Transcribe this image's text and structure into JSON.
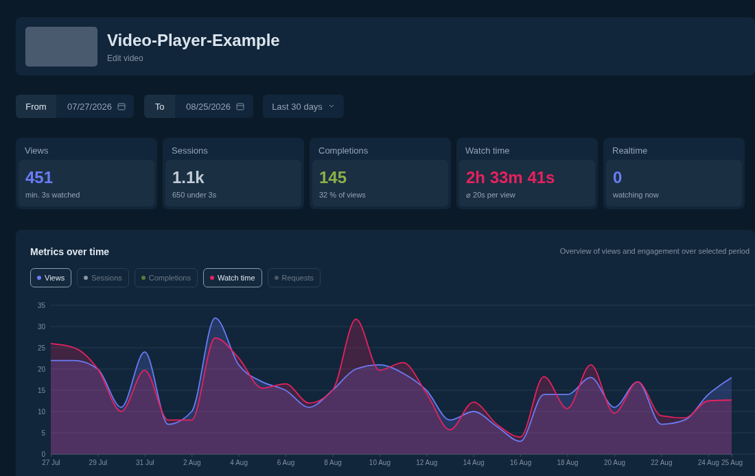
{
  "chart_data": [
    {
      "type": "other",
      "title": "Video-Player-Example",
      "subtitle": "Edit video",
      "annotations": [
        "From",
        "07/27/2026",
        "To",
        "08/25/2026",
        "Last 30 days",
        "Views",
        "451",
        "min. 3s watched",
        "Sessions",
        "1.1k",
        "650 under 3s",
        "Completions",
        "145",
        "32 % of views",
        "Watch time",
        "2h 33m 41s",
        "⌀ 20s per view",
        "Realtime",
        "0",
        "watching now"
      ]
    },
    {
      "type": "area",
      "title": "Metrics over time",
      "subtitle": "Overview of views and engagement over selected period",
      "x": [
        "2026-07-27",
        "2026-07-28",
        "2026-07-29",
        "2026-07-30",
        "2026-07-31",
        "2026-08-01",
        "2026-08-02",
        "2026-08-03",
        "2026-08-04",
        "2026-08-05",
        "2026-08-06",
        "2026-08-07",
        "2026-08-08",
        "2026-08-09",
        "2026-08-10",
        "2026-08-11",
        "2026-08-12",
        "2026-08-13",
        "2026-08-14",
        "2026-08-15",
        "2026-08-16",
        "2026-08-17",
        "2026-08-18",
        "2026-08-19",
        "2026-08-20",
        "2026-08-21",
        "2026-08-22",
        "2026-08-23",
        "2026-08-24",
        "2026-08-25"
      ],
      "series": [
        {
          "name": "Views",
          "color": "#6b7cf5",
          "values": [
            22,
            22,
            20,
            11,
            24,
            7,
            10,
            32,
            21,
            17,
            15,
            11,
            15,
            20,
            21,
            19,
            15,
            8,
            10,
            6.5,
            3,
            14,
            14,
            18,
            11,
            17,
            7,
            8,
            14,
            18
          ]
        },
        {
          "name": "Watch time",
          "color": "#e8215f",
          "values": [
            26,
            25,
            20,
            10,
            19.7,
            8,
            8,
            27.3,
            22.6,
            15.5,
            16.5,
            12,
            15,
            31.7,
            19.7,
            21.5,
            14.3,
            5.7,
            12.2,
            7,
            4,
            18.2,
            10.7,
            21,
            9.6,
            17,
            9,
            8.5,
            12.5,
            12.7
          ]
        }
      ],
      "annotations": [
        "Sessions",
        "Completions",
        "Requests"
      ],
      "xlim": [
        "2026-07-27",
        "2026-08-25"
      ],
      "xticks": [
        {
          "value": "2026-07-27",
          "label": "27 Jul"
        },
        {
          "value": "2026-07-29",
          "label": "29 Jul"
        },
        {
          "value": "2026-07-31",
          "label": "31 Jul"
        },
        {
          "value": "2026-08-02",
          "label": "2 Aug"
        },
        {
          "value": "2026-08-04",
          "label": "4 Aug"
        },
        {
          "value": "2026-08-06",
          "label": "6 Aug"
        },
        {
          "value": "2026-08-08",
          "label": "8 Aug"
        },
        {
          "value": "2026-08-10",
          "label": "10 Aug"
        },
        {
          "value": "2026-08-12",
          "label": "12 Aug"
        },
        {
          "value": "2026-08-14",
          "label": "14 Aug"
        },
        {
          "value": "2026-08-16",
          "label": "16 Aug"
        },
        {
          "value": "2026-08-18",
          "label": "18 Aug"
        },
        {
          "value": "2026-08-20",
          "label": "20 Aug"
        },
        {
          "value": "2026-08-22",
          "label": "22 Aug"
        },
        {
          "value": "2026-08-24",
          "label": "24 Aug"
        },
        {
          "value": "2026-08-25",
          "label": "25 Aug"
        }
      ],
      "ylim": [
        0,
        35
      ],
      "yticks": [
        0,
        5,
        10,
        15,
        20,
        25,
        30,
        35
      ],
      "grid": "y",
      "legend": "top left"
    }
  ]
}
